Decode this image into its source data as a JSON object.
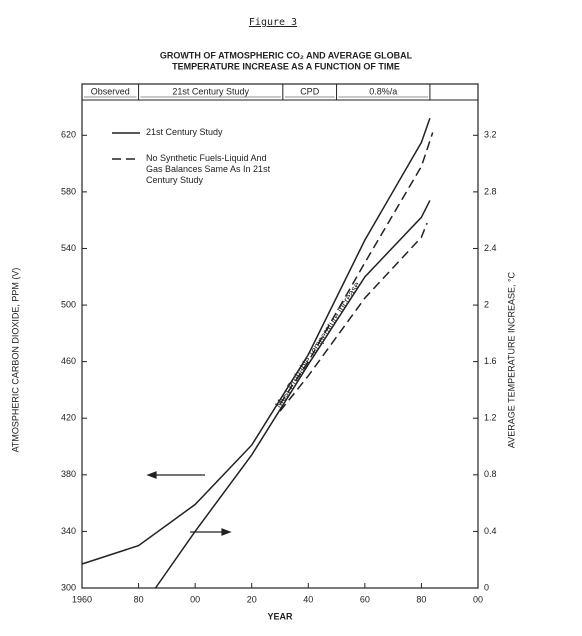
{
  "chart_data": {
    "type": "line",
    "figure_label": "Figure 3",
    "title": [
      "GROWTH OF ATMOSPHERIC CO₂ AND AVERAGE GLOBAL",
      "TEMPERATURE INCREASE AS A FUNCTION OF TIME"
    ],
    "xlabel": "YEAR",
    "ylabel": "ATMOSPHERIC CARBON DIOXIDE, PPM (V)",
    "y2label": "AVERAGE TEMPERATURE INCREASE, °C",
    "annotation": "Most Probable Temperature Increase",
    "periods": [
      {
        "label": "Observed",
        "start": 1960,
        "end": 1980
      },
      {
        "label": "21st Century Study",
        "start": 1980,
        "end": 2031
      },
      {
        "label": "CPD",
        "start": 2031,
        "end": 2050
      },
      {
        "label": "0.8%/a",
        "start": 2050,
        "end": 2083
      }
    ],
    "xlim": [
      1960,
      2100
    ],
    "xticks": [
      1960,
      {
        "value": 1980,
        "label": "80"
      },
      {
        "value": 2000,
        "label": "00"
      },
      {
        "value": 2020,
        "label": "20"
      },
      {
        "value": 2040,
        "label": "40"
      },
      {
        "value": 2060,
        "label": "60"
      },
      {
        "value": 2080,
        "label": "80"
      },
      {
        "value": 2100,
        "label": "00"
      }
    ],
    "ylim": [
      300,
      640
    ],
    "yticks": [
      300,
      340,
      380,
      420,
      460,
      500,
      540,
      580,
      620
    ],
    "y2lim": [
      0,
      3.4
    ],
    "y2ticks": [
      0,
      0.4,
      0.8,
      1.2,
      1.6,
      2.0,
      2.4,
      2.8,
      3.2
    ],
    "color": "#222222",
    "series": [
      {
        "name": "21st Century Study",
        "dash": false,
        "x": [
          1960,
          1980,
          2000,
          2020,
          2040,
          2060,
          2080,
          2083
        ],
        "values": [
          317,
          330,
          359,
          401,
          465,
          546,
          615,
          632
        ]
      },
      {
        "name": "No Synthetic Fuels-Liquid And Gas Balances Same As In 21st Century Study",
        "dash": true,
        "x": [
          2030,
          2040,
          2060,
          2080,
          2084
        ],
        "values": [
          430,
          460,
          530,
          598,
          622
        ]
      },
      {
        "axis": "y2",
        "dash": false,
        "x": [
          1986,
          2000,
          2020,
          2040,
          2060,
          2080,
          2083
        ],
        "values": [
          0,
          0.4,
          0.94,
          1.58,
          2.2,
          2.62,
          2.74
        ]
      },
      {
        "axis": "y2",
        "dash": true,
        "x": [
          2030,
          2040,
          2060,
          2080,
          2082
        ],
        "values": [
          1.25,
          1.5,
          2.05,
          2.48,
          2.58
        ]
      }
    ]
  }
}
